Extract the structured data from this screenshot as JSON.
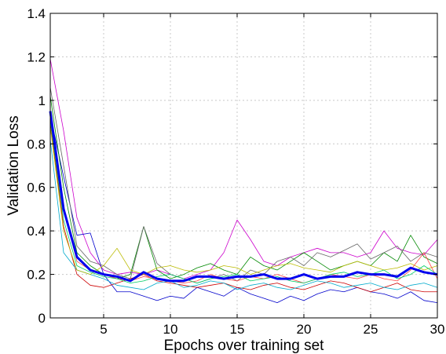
{
  "chart_data": {
    "type": "line",
    "title": "",
    "xlabel": "Epochs over training set",
    "ylabel": "Validation Loss",
    "xlim": [
      1,
      30
    ],
    "ylim": [
      0,
      1.4
    ],
    "xticks": [
      5,
      10,
      15,
      20,
      25,
      30
    ],
    "yticks": [
      0,
      0.2,
      0.4,
      0.6,
      0.8,
      1,
      1.2,
      1.4
    ],
    "xtick_labels": [
      "5",
      "10",
      "15",
      "20",
      "25",
      "30"
    ],
    "ytick_labels": [
      "0",
      "0.2",
      "0.4",
      "0.6",
      "0.8",
      "1",
      "1.2",
      "1.4"
    ],
    "grid": true,
    "legend": "none",
    "x": [
      1,
      2,
      3,
      4,
      5,
      6,
      7,
      8,
      9,
      10,
      11,
      12,
      13,
      14,
      15,
      16,
      17,
      18,
      19,
      20,
      21,
      22,
      23,
      24,
      25,
      26,
      27,
      28,
      29,
      30
    ],
    "series": [
      {
        "color": "#cc00cc",
        "values": [
          1.19,
          0.86,
          0.46,
          0.3,
          0.22,
          0.2,
          0.21,
          0.2,
          0.22,
          0.2,
          0.18,
          0.2,
          0.22,
          0.3,
          0.45,
          0.36,
          0.26,
          0.24,
          0.28,
          0.3,
          0.32,
          0.3,
          0.3,
          0.28,
          0.3,
          0.4,
          0.32,
          0.3,
          0.29,
          0.36
        ]
      },
      {
        "color": "#0000cc",
        "values": [
          0.93,
          0.65,
          0.38,
          0.39,
          0.2,
          0.12,
          0.12,
          0.1,
          0.08,
          0.1,
          0.09,
          0.14,
          0.12,
          0.1,
          0.14,
          0.11,
          0.09,
          0.07,
          0.1,
          0.08,
          0.11,
          0.13,
          0.12,
          0.14,
          0.12,
          0.11,
          0.09,
          0.12,
          0.08,
          0.07
        ]
      },
      {
        "color": "#008800",
        "values": [
          1.02,
          0.6,
          0.3,
          0.24,
          0.2,
          0.18,
          0.2,
          0.42,
          0.22,
          0.18,
          0.2,
          0.23,
          0.25,
          0.22,
          0.2,
          0.28,
          0.24,
          0.22,
          0.26,
          0.3,
          0.26,
          0.22,
          0.24,
          0.26,
          0.24,
          0.3,
          0.26,
          0.38,
          0.28,
          0.25
        ]
      },
      {
        "color": "#666666",
        "values": [
          1.06,
          0.7,
          0.33,
          0.26,
          0.24,
          0.2,
          0.18,
          0.42,
          0.25,
          0.2,
          0.18,
          0.16,
          0.18,
          0.2,
          0.17,
          0.22,
          0.2,
          0.26,
          0.28,
          0.24,
          0.3,
          0.28,
          0.31,
          0.34,
          0.27,
          0.3,
          0.33,
          0.26,
          0.3,
          0.28
        ]
      },
      {
        "color": "#cc0000",
        "values": [
          0.9,
          0.42,
          0.2,
          0.15,
          0.14,
          0.16,
          0.18,
          0.2,
          0.17,
          0.16,
          0.15,
          0.14,
          0.15,
          0.16,
          0.14,
          0.13,
          0.15,
          0.16,
          0.14,
          0.13,
          0.15,
          0.17,
          0.16,
          0.14,
          0.12,
          0.14,
          0.16,
          0.13,
          0.12,
          0.12
        ]
      },
      {
        "color": "#00aacc",
        "values": [
          0.82,
          0.3,
          0.22,
          0.2,
          0.18,
          0.15,
          0.14,
          0.13,
          0.16,
          0.17,
          0.14,
          0.15,
          0.17,
          0.16,
          0.13,
          0.15,
          0.16,
          0.14,
          0.13,
          0.15,
          0.17,
          0.16,
          0.14,
          0.15,
          0.16,
          0.14,
          0.13,
          0.15,
          0.16,
          0.14
        ]
      },
      {
        "color": "#bbbb00",
        "values": [
          0.88,
          0.4,
          0.22,
          0.2,
          0.24,
          0.32,
          0.22,
          0.2,
          0.23,
          0.24,
          0.22,
          0.21,
          0.22,
          0.24,
          0.23,
          0.2,
          0.22,
          0.24,
          0.25,
          0.23,
          0.22,
          0.21,
          0.24,
          0.26,
          0.24,
          0.22,
          0.23,
          0.25,
          0.22,
          0.24
        ]
      },
      {
        "color": "#ff4444",
        "values": [
          0.95,
          0.5,
          0.26,
          0.22,
          0.2,
          0.18,
          0.17,
          0.19,
          0.18,
          0.17,
          0.16,
          0.17,
          0.2,
          0.18,
          0.17,
          0.19,
          0.18,
          0.2,
          0.18,
          0.16,
          0.18,
          0.2,
          0.19,
          0.18,
          0.2,
          0.18,
          0.17,
          0.22,
          0.3,
          0.18
        ]
      },
      {
        "color": "#00cc66",
        "values": [
          0.91,
          0.45,
          0.24,
          0.21,
          0.19,
          0.18,
          0.16,
          0.17,
          0.19,
          0.2,
          0.18,
          0.16,
          0.18,
          0.19,
          0.2,
          0.17,
          0.18,
          0.19,
          0.17,
          0.16,
          0.18,
          0.2,
          0.21,
          0.19,
          0.2,
          0.22,
          0.18,
          0.2,
          0.24,
          0.2
        ]
      },
      {
        "color": "#0000ee",
        "linewidth": 3,
        "values": [
          0.95,
          0.5,
          0.28,
          0.22,
          0.2,
          0.19,
          0.17,
          0.21,
          0.18,
          0.17,
          0.17,
          0.19,
          0.19,
          0.18,
          0.19,
          0.19,
          0.2,
          0.18,
          0.18,
          0.2,
          0.18,
          0.19,
          0.19,
          0.21,
          0.2,
          0.2,
          0.19,
          0.23,
          0.21,
          0.2
        ]
      }
    ]
  }
}
